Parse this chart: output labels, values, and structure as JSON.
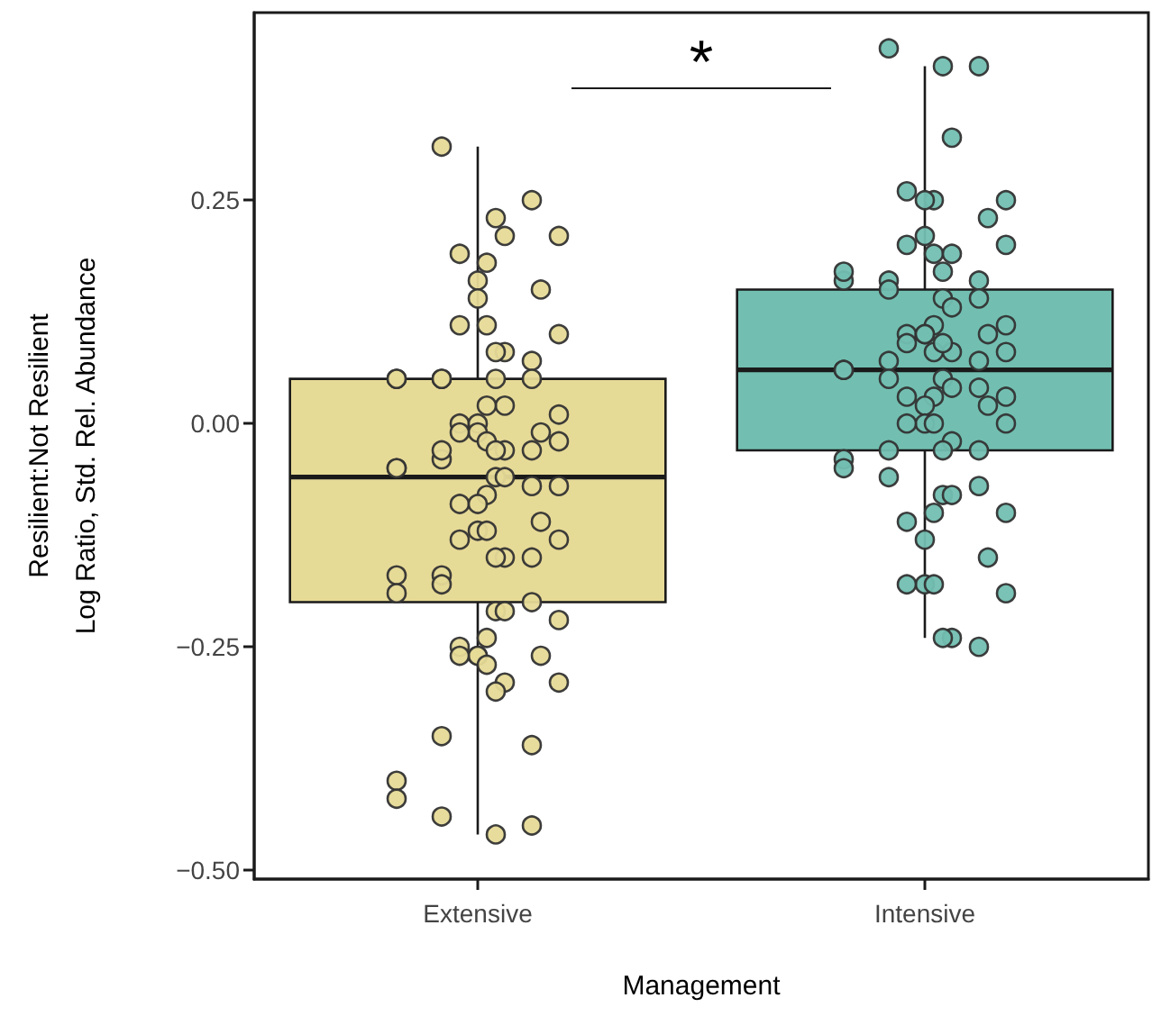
{
  "chart_data": {
    "type": "box",
    "xlabel": "Management",
    "ylabel": "Resilient:Not Resilient\nLog Ratio, Std. Rel. Abundance",
    "categories": [
      "Extensive",
      "Intensive"
    ],
    "colors": [
      "#e6da97",
      "#72bfb1"
    ],
    "boxes": [
      {
        "low": -0.46,
        "q1": -0.2,
        "median": -0.06,
        "q3": 0.05,
        "high": 0.31
      },
      {
        "low": -0.24,
        "q1": -0.03,
        "median": 0.06,
        "q3": 0.15,
        "high": 0.4
      }
    ],
    "series": [
      {
        "type": "scatter",
        "color": "#e6da97",
        "x": [
          "Extensive",
          "Extensive",
          "Extensive",
          "Extensive",
          "Extensive",
          "Extensive",
          "Extensive",
          "Extensive",
          "Extensive",
          "Extensive",
          "Extensive",
          "Extensive",
          "Extensive",
          "Extensive",
          "Extensive",
          "Extensive",
          "Extensive",
          "Extensive",
          "Extensive",
          "Extensive",
          "Extensive",
          "Extensive",
          "Extensive",
          "Extensive",
          "Extensive",
          "Extensive",
          "Extensive",
          "Extensive",
          "Extensive",
          "Extensive",
          "Extensive",
          "Extensive",
          "Extensive",
          "Extensive",
          "Extensive",
          "Extensive",
          "Extensive",
          "Extensive",
          "Extensive",
          "Extensive",
          "Extensive",
          "Extensive",
          "Extensive",
          "Extensive",
          "Extensive",
          "Extensive",
          "Extensive",
          "Extensive",
          "Extensive",
          "Extensive",
          "Extensive",
          "Extensive",
          "Extensive",
          "Extensive",
          "Extensive",
          "Extensive",
          "Extensive",
          "Extensive",
          "Extensive",
          "Extensive",
          "Extensive",
          "Extensive",
          "Extensive",
          "Extensive",
          "Extensive",
          "Extensive",
          "Extensive",
          "Extensive",
          "Extensive",
          "Extensive",
          "Extensive",
          "Extensive",
          "Extensive",
          "Extensive",
          "Extensive",
          "Extensive",
          "Extensive",
          "Extensive",
          "Extensive"
        ],
        "values": [
          0.31,
          0.25,
          0.23,
          0.21,
          0.21,
          0.18,
          0.19,
          0.16,
          0.15,
          0.14,
          0.11,
          0.11,
          0.1,
          0.08,
          0.08,
          0.07,
          0.05,
          0.05,
          0.05,
          0.05,
          0.05,
          0.05,
          0.02,
          0.01,
          0.02,
          0.0,
          0.0,
          -0.01,
          -0.01,
          -0.01,
          -0.02,
          -0.02,
          -0.03,
          -0.03,
          -0.03,
          -0.04,
          -0.05,
          -0.05,
          -0.03,
          -0.07,
          -0.06,
          -0.06,
          -0.07,
          -0.08,
          -0.09,
          -0.09,
          -0.11,
          -0.12,
          -0.13,
          -0.12,
          -0.13,
          -0.15,
          -0.15,
          -0.15,
          -0.17,
          -0.17,
          -0.19,
          -0.18,
          -0.2,
          -0.21,
          -0.21,
          -0.22,
          -0.24,
          -0.25,
          -0.26,
          -0.26,
          -0.26,
          -0.26,
          -0.27,
          -0.29,
          -0.29,
          -0.3,
          -0.36,
          -0.35,
          -0.4,
          -0.42,
          -0.44,
          -0.45,
          -0.46
        ]
      },
      {
        "type": "scatter",
        "color": "#72bfb1",
        "x": [
          "Intensive",
          "Intensive",
          "Intensive",
          "Intensive",
          "Intensive",
          "Intensive",
          "Intensive",
          "Intensive",
          "Intensive",
          "Intensive",
          "Intensive",
          "Intensive",
          "Intensive",
          "Intensive",
          "Intensive",
          "Intensive",
          "Intensive",
          "Intensive",
          "Intensive",
          "Intensive",
          "Intensive",
          "Intensive",
          "Intensive",
          "Intensive",
          "Intensive",
          "Intensive",
          "Intensive",
          "Intensive",
          "Intensive",
          "Intensive",
          "Intensive",
          "Intensive",
          "Intensive",
          "Intensive",
          "Intensive",
          "Intensive",
          "Intensive",
          "Intensive",
          "Intensive",
          "Intensive",
          "Intensive",
          "Intensive",
          "Intensive",
          "Intensive",
          "Intensive",
          "Intensive",
          "Intensive",
          "Intensive",
          "Intensive",
          "Intensive",
          "Intensive",
          "Intensive",
          "Intensive",
          "Intensive",
          "Intensive",
          "Intensive",
          "Intensive",
          "Intensive",
          "Intensive",
          "Intensive",
          "Intensive",
          "Intensive",
          "Intensive",
          "Intensive",
          "Intensive",
          "Intensive",
          "Intensive",
          "Intensive",
          "Intensive",
          "Intensive",
          "Intensive",
          "Intensive",
          "Intensive"
        ],
        "values": [
          0.42,
          0.4,
          0.4,
          0.32,
          0.25,
          0.25,
          0.26,
          0.25,
          0.23,
          0.21,
          0.2,
          0.19,
          0.2,
          0.19,
          0.17,
          0.16,
          0.16,
          0.16,
          0.17,
          0.15,
          0.14,
          0.14,
          0.13,
          0.11,
          0.11,
          0.1,
          0.1,
          0.1,
          0.1,
          0.09,
          0.08,
          0.08,
          0.08,
          0.09,
          0.07,
          0.07,
          0.06,
          0.06,
          0.05,
          0.04,
          0.05,
          0.04,
          0.03,
          0.03,
          0.03,
          0.02,
          0.02,
          0.0,
          0.0,
          0.0,
          0.0,
          -0.02,
          -0.03,
          -0.03,
          -0.03,
          -0.04,
          -0.05,
          -0.06,
          -0.07,
          -0.08,
          -0.08,
          -0.1,
          -0.1,
          -0.11,
          -0.13,
          -0.15,
          -0.18,
          -0.18,
          -0.18,
          -0.19,
          -0.24,
          -0.24,
          -0.25
        ]
      }
    ],
    "ylim": [
      -0.51,
      0.46
    ],
    "yticks": [
      {
        "value": -0.5,
        "label": "−0.50"
      },
      {
        "value": -0.25,
        "label": "−0.25"
      },
      {
        "value": 0,
        "label": "0.00"
      },
      0.25
    ],
    "annotations": [
      "*"
    ],
    "marker": "circle",
    "grid": false
  }
}
